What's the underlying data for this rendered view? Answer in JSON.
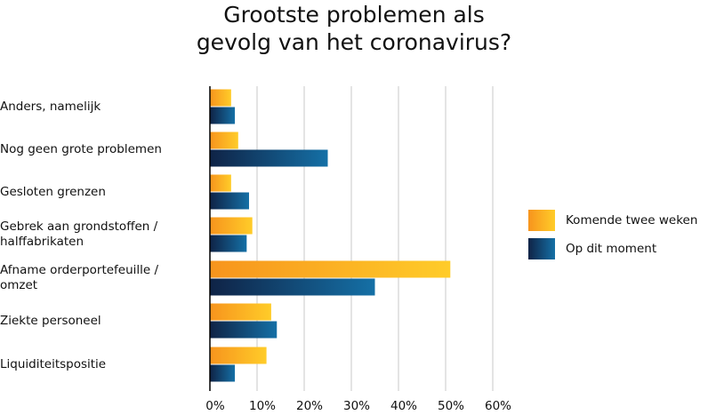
{
  "chart_data": {
    "type": "bar",
    "orientation": "horizontal",
    "title_lines": [
      "Grootste problemen als",
      "gevolg van het coronavirus?"
    ],
    "categories": [
      [
        "Anders, namelijk"
      ],
      [
        "Nog geen grote problemen"
      ],
      [
        "Gesloten grenzen"
      ],
      [
        "Gebrek aan grondstoffen /",
        "halffabrikaten"
      ],
      [
        "Afname orderportefeuille /",
        "omzet"
      ],
      [
        "Ziekte personeel"
      ],
      [
        "Liquiditeitspositie"
      ]
    ],
    "series": [
      {
        "name": "Komende twee weken",
        "values": [
          4.5,
          6,
          4.5,
          9,
          51,
          13,
          12
        ]
      },
      {
        "name": "Op dit moment",
        "values": [
          5.3,
          25,
          8.3,
          7.8,
          35,
          14.2,
          5.3
        ]
      }
    ],
    "xlim": [
      0,
      60
    ],
    "xticks": [
      0,
      10,
      20,
      30,
      40,
      50,
      60
    ],
    "tick_suffix": "%",
    "grid": true,
    "legend_position": "right",
    "colors": {
      "orange_start": "#f7941d",
      "orange_end": "#ffcc29",
      "blue_start": "#0f2346",
      "blue_end": "#1570a6",
      "grid": "#c8c8c8",
      "axis": "#000000"
    }
  }
}
